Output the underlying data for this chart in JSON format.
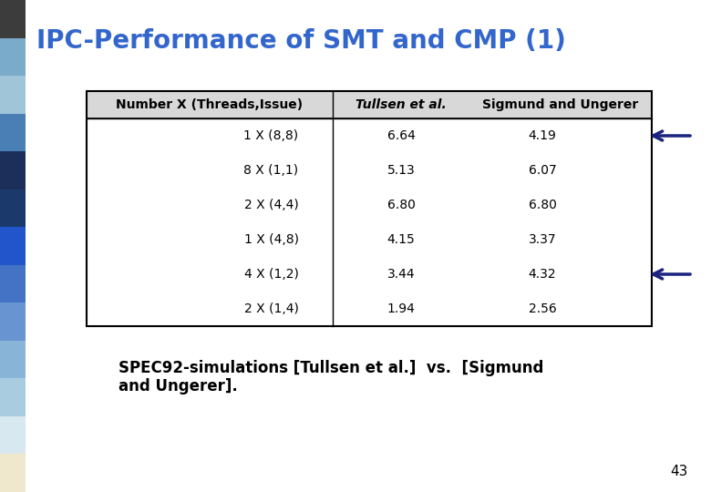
{
  "title": "IPC-Performance of SMT and CMP (1)",
  "title_color": "#3366CC",
  "title_fontsize": 20,
  "col_headers": [
    "Number X (Threads,Issue)",
    "Tullsen et al.",
    "Sigmund and Ungerer"
  ],
  "rows": [
    [
      "1 X (8,8)",
      "6.64",
      "4.19"
    ],
    [
      "8 X (1,1)",
      "5.13",
      "6.07"
    ],
    [
      "2 X (4,4)",
      "6.80",
      "6.80"
    ],
    [
      "1 X (4,8)",
      "4.15",
      "3.37"
    ],
    [
      "4 X (1,2)",
      "3.44",
      "4.32"
    ],
    [
      "2 X (1,4)",
      "1.94",
      "2.56"
    ]
  ],
  "arrow_rows": [
    0,
    4
  ],
  "arrow_color": "#1A237E",
  "bg_color": "#FFFFFF",
  "sidebar_colors": [
    "#3C3C3C",
    "#7AABCA",
    "#A0C4D8",
    "#4A7FB5",
    "#1B2F5A",
    "#1B3A6B",
    "#2255CC",
    "#4472C4",
    "#6895D2",
    "#88B4D8",
    "#AACCE0",
    "#D8E8F0",
    "#F0E8CC"
  ],
  "subtitle_line1": "SPEC92-simulations [Tullsen et al.]  vs.  [Sigmund",
  "subtitle_line2": "and Ungerer].",
  "subtitle_fontsize": 12,
  "page_number": "43"
}
